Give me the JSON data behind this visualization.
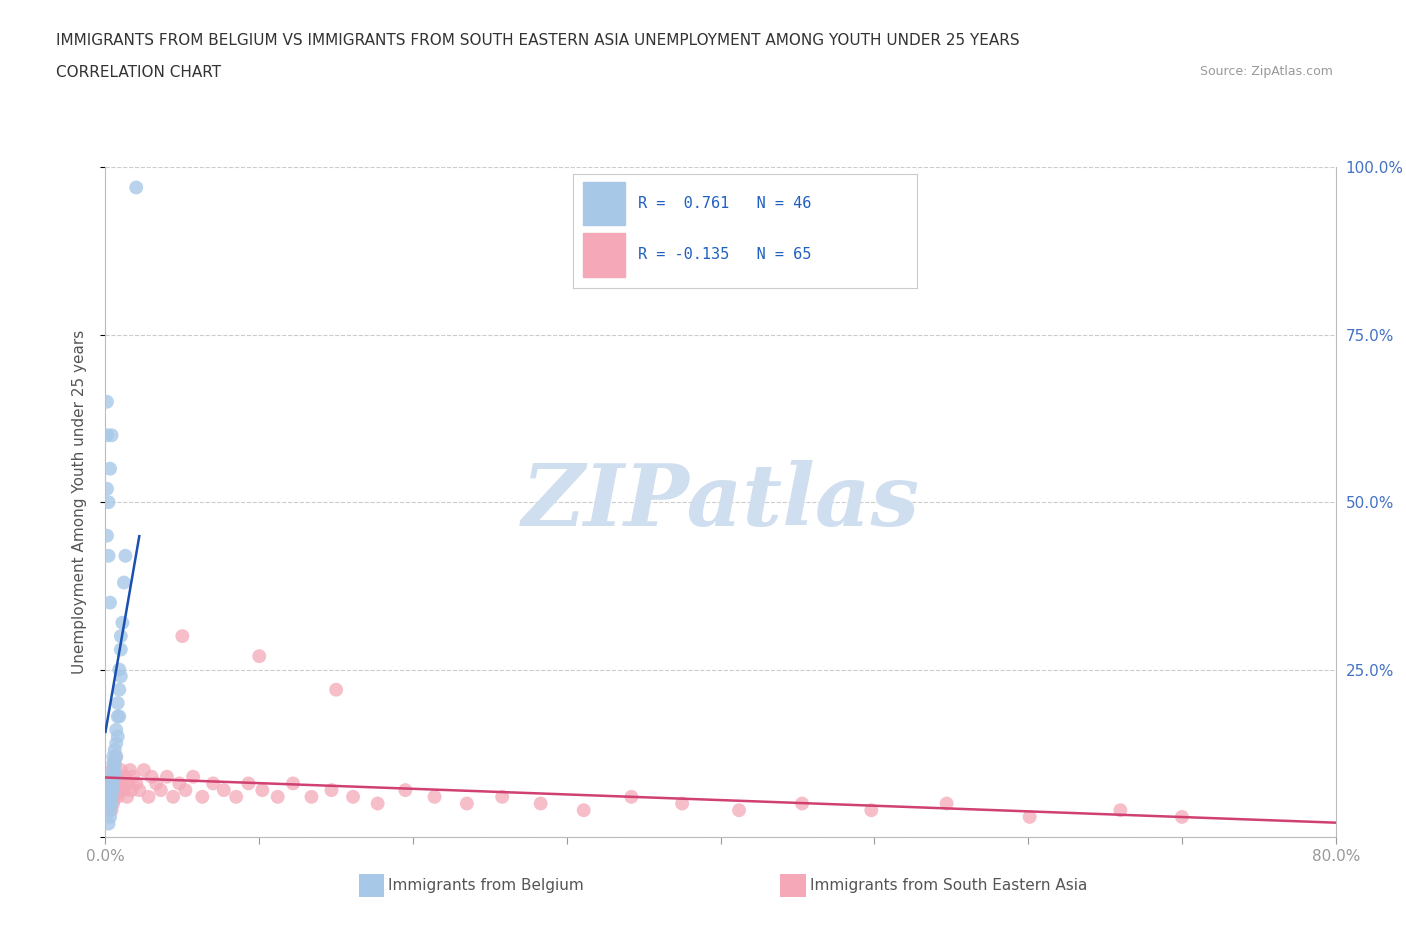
{
  "title_line1": "IMMIGRANTS FROM BELGIUM VS IMMIGRANTS FROM SOUTH EASTERN ASIA UNEMPLOYMENT AMONG YOUTH UNDER 25 YEARS",
  "title_line2": "CORRELATION CHART",
  "source": "Source: ZipAtlas.com",
  "ylabel": "Unemployment Among Youth under 25 years",
  "xlim": [
    0.0,
    0.8
  ],
  "ylim": [
    0.0,
    1.0
  ],
  "belgium_R": 0.761,
  "belgium_N": 46,
  "sea_R": -0.135,
  "sea_N": 65,
  "belgium_color": "#a8c8e8",
  "sea_color": "#f4a8b8",
  "belgium_line_color": "#1a50b0",
  "sea_line_color": "#d04070",
  "legend_color": "#2060c0",
  "watermark_text": "ZIPatlas",
  "watermark_color": "#d0dff0",
  "belgium_x": [
    0.002,
    0.003,
    0.003,
    0.003,
    0.003,
    0.003,
    0.004,
    0.004,
    0.004,
    0.004,
    0.004,
    0.005,
    0.005,
    0.005,
    0.005,
    0.005,
    0.005,
    0.006,
    0.006,
    0.006,
    0.006,
    0.007,
    0.007,
    0.007,
    0.008,
    0.008,
    0.008,
    0.009,
    0.009,
    0.009,
    0.01,
    0.01,
    0.01,
    0.011,
    0.012,
    0.013,
    0.002,
    0.002,
    0.003,
    0.004,
    0.001,
    0.001,
    0.001,
    0.001,
    0.02,
    0.003
  ],
  "belgium_y": [
    0.02,
    0.03,
    0.04,
    0.05,
    0.06,
    0.07,
    0.05,
    0.06,
    0.07,
    0.08,
    0.09,
    0.07,
    0.08,
    0.09,
    0.1,
    0.11,
    0.12,
    0.09,
    0.1,
    0.11,
    0.13,
    0.12,
    0.14,
    0.16,
    0.15,
    0.18,
    0.2,
    0.18,
    0.22,
    0.25,
    0.24,
    0.28,
    0.3,
    0.32,
    0.38,
    0.42,
    0.42,
    0.5,
    0.55,
    0.6,
    0.45,
    0.52,
    0.6,
    0.65,
    0.97,
    0.35
  ],
  "sea_x": [
    0.003,
    0.003,
    0.004,
    0.004,
    0.005,
    0.005,
    0.006,
    0.006,
    0.007,
    0.007,
    0.008,
    0.008,
    0.009,
    0.009,
    0.01,
    0.011,
    0.012,
    0.013,
    0.014,
    0.015,
    0.016,
    0.017,
    0.018,
    0.02,
    0.022,
    0.025,
    0.028,
    0.03,
    0.033,
    0.036,
    0.04,
    0.044,
    0.048,
    0.052,
    0.057,
    0.063,
    0.07,
    0.077,
    0.085,
    0.093,
    0.102,
    0.112,
    0.122,
    0.134,
    0.147,
    0.161,
    0.177,
    0.195,
    0.214,
    0.235,
    0.258,
    0.283,
    0.311,
    0.342,
    0.375,
    0.412,
    0.453,
    0.498,
    0.547,
    0.601,
    0.66,
    0.7,
    0.05,
    0.1,
    0.15
  ],
  "sea_y": [
    0.06,
    0.08,
    0.04,
    0.1,
    0.05,
    0.09,
    0.06,
    0.11,
    0.07,
    0.12,
    0.08,
    0.06,
    0.09,
    0.07,
    0.1,
    0.08,
    0.07,
    0.09,
    0.06,
    0.08,
    0.1,
    0.07,
    0.09,
    0.08,
    0.07,
    0.1,
    0.06,
    0.09,
    0.08,
    0.07,
    0.09,
    0.06,
    0.08,
    0.07,
    0.09,
    0.06,
    0.08,
    0.07,
    0.06,
    0.08,
    0.07,
    0.06,
    0.08,
    0.06,
    0.07,
    0.06,
    0.05,
    0.07,
    0.06,
    0.05,
    0.06,
    0.05,
    0.04,
    0.06,
    0.05,
    0.04,
    0.05,
    0.04,
    0.05,
    0.03,
    0.04,
    0.03,
    0.3,
    0.27,
    0.22
  ]
}
